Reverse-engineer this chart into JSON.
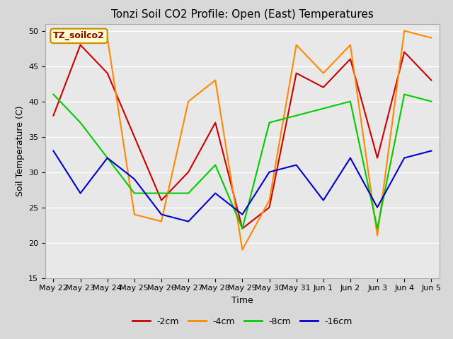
{
  "title": "Tonzi Soil CO2 Profile: Open (East) Temperatures",
  "xlabel": "Time",
  "ylabel": "Soil Temperature (C)",
  "legend_label": "TZ_soilco2",
  "x_labels": [
    "May 22",
    "May 23",
    "May 24",
    "May 25",
    "May 26",
    "May 27",
    "May 28",
    "May 29",
    "May 30",
    "May 31",
    "Jun 1",
    "Jun 2",
    "Jun 3",
    "Jun 4",
    "Jun 5"
  ],
  "ylim": [
    15,
    51
  ],
  "yticks": [
    15,
    20,
    25,
    30,
    35,
    40,
    45,
    50
  ],
  "series": {
    "-2cm": {
      "color": "#cc0000",
      "values": [
        38,
        48,
        44,
        35,
        26,
        30,
        37,
        22,
        25,
        44,
        42,
        46,
        32,
        47,
        43
      ]
    },
    "-4cm": {
      "color": "#ff8800",
      "values": [
        49,
        49,
        49,
        24,
        23,
        40,
        43,
        19,
        26,
        48,
        44,
        48,
        21,
        50,
        49
      ]
    },
    "-8cm": {
      "color": "#00cc00",
      "values": [
        41,
        37,
        32,
        27,
        27,
        27,
        31,
        22,
        37,
        38,
        39,
        40,
        22,
        41,
        40
      ]
    },
    "-16cm": {
      "color": "#0000cc",
      "values": [
        33,
        27,
        32,
        29,
        24,
        23,
        27,
        24,
        30,
        31,
        26,
        32,
        25,
        32,
        33
      ]
    }
  },
  "bg_color": "#e8e8e8",
  "fig_color": "#d8d8d8",
  "grid_color": "#ffffff",
  "title_fontsize": 11,
  "axis_fontsize": 9,
  "tick_fontsize": 8,
  "legend_fontsize": 9
}
